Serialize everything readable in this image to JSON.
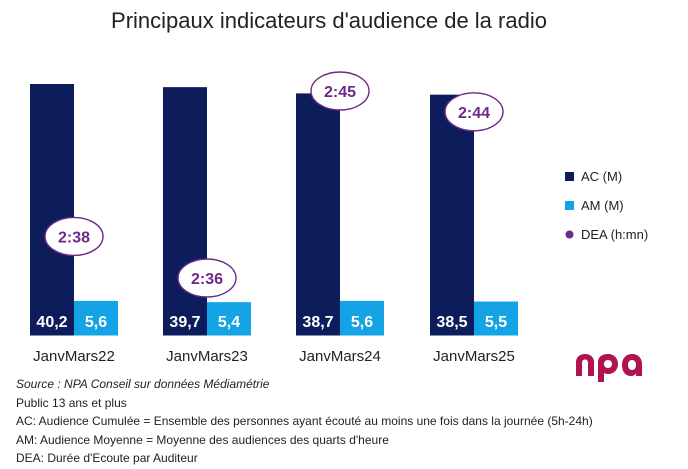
{
  "chart_data": {
    "type": "bar",
    "title": "Principaux indicateurs d'audience de la radio",
    "categories": [
      "JanvMars22",
      "JanvMars23",
      "JanvMars24",
      "JanvMars25"
    ],
    "series": [
      {
        "name": "AC (M)",
        "color": "#0D1D5C",
        "values": [
          40.2,
          39.7,
          38.7,
          38.5
        ],
        "labels": [
          "40,2",
          "39,7",
          "38,7",
          "38,5"
        ]
      },
      {
        "name": "AM (M)",
        "color": "#14A4E6",
        "values": [
          5.6,
          5.4,
          5.6,
          5.5
        ],
        "labels": [
          "5,6",
          "5,4",
          "5,6",
          "5,5"
        ]
      },
      {
        "name": "DEA (h:mn)",
        "color": "#6B2A86",
        "values_minutes": [
          158,
          156,
          165,
          164
        ],
        "labels": [
          "2:38",
          "2:36",
          "2:45",
          "2:44"
        ]
      }
    ],
    "legend_position": "right",
    "grid": false
  },
  "notes": {
    "source": "Source : NPA Conseil sur données Médiamétrie",
    "public": "Public 13 ans et plus",
    "ac_def": "AC: Audience Cumulée = Ensemble des personnes ayant écouté au moins une fois dans la journée (5h-24h)",
    "am_def": "AM: Audience Moyenne = Moyenne des audiences des quarts d'heure",
    "dea_def": "DEA: Durée d'Ecoute par Auditeur"
  },
  "logo": {
    "text": "npa",
    "color": "#B0134F"
  }
}
